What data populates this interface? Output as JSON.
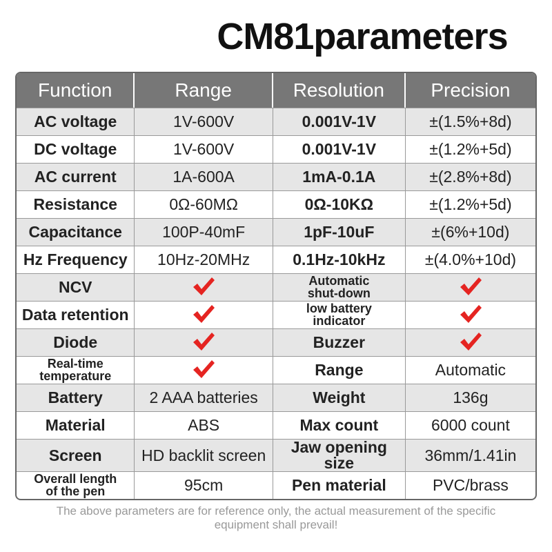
{
  "header": {
    "title": "CM81parameters"
  },
  "table": {
    "columns": [
      "Function",
      "Range",
      "Resolution",
      "Precision"
    ],
    "rows": [
      {
        "function": "AC voltage",
        "range": "1V-600V",
        "resolution": "0.001V-1V",
        "precision": "±(1.5%+8d)"
      },
      {
        "function": "DC voltage",
        "range": "1V-600V",
        "resolution": "0.001V-1V",
        "precision": "±(1.2%+5d)"
      },
      {
        "function": "AC current",
        "range": "1A-600A",
        "resolution": "1mA-0.1A",
        "precision": "±(2.8%+8d)"
      },
      {
        "function": "Resistance",
        "range": "0Ω-60MΩ",
        "resolution": "0Ω-10KΩ",
        "precision": "±(1.2%+5d)"
      },
      {
        "function": "Capacitance",
        "range": "100P-40mF",
        "resolution": "1pF-10uF",
        "precision": "±(6%+10d)"
      },
      {
        "function": "Hz Frequency",
        "range": "10Hz-20MHz",
        "resolution": "0.1Hz-10kHz",
        "precision": "±(4.0%+10d)"
      },
      {
        "function": "NCV",
        "resolution": "Automatic\nshut-down"
      },
      {
        "function": "Data retention",
        "resolution": "low battery\nindicator"
      },
      {
        "function": "Diode",
        "resolution": "Buzzer"
      },
      {
        "function": "Real-time\ntemperature",
        "resolution": "Range",
        "precision": "Automatic"
      },
      {
        "function": "Battery",
        "range": "2 AAA batteries",
        "resolution": "Weight",
        "precision": "136g"
      },
      {
        "function": "Material",
        "range": "ABS",
        "resolution": "Max count",
        "precision": "6000 count"
      },
      {
        "function": "Screen",
        "range": "HD backlit screen",
        "resolution": "Jaw opening size",
        "precision": "36mm/1.41in"
      },
      {
        "function": "Overall length\nof the pen",
        "range": "95cm",
        "resolution": "Pen material",
        "precision": "PVC/brass"
      }
    ]
  },
  "footer": {
    "note": "The above parameters are for reference only, the actual measurement of the specific equipment shall prevail!"
  }
}
